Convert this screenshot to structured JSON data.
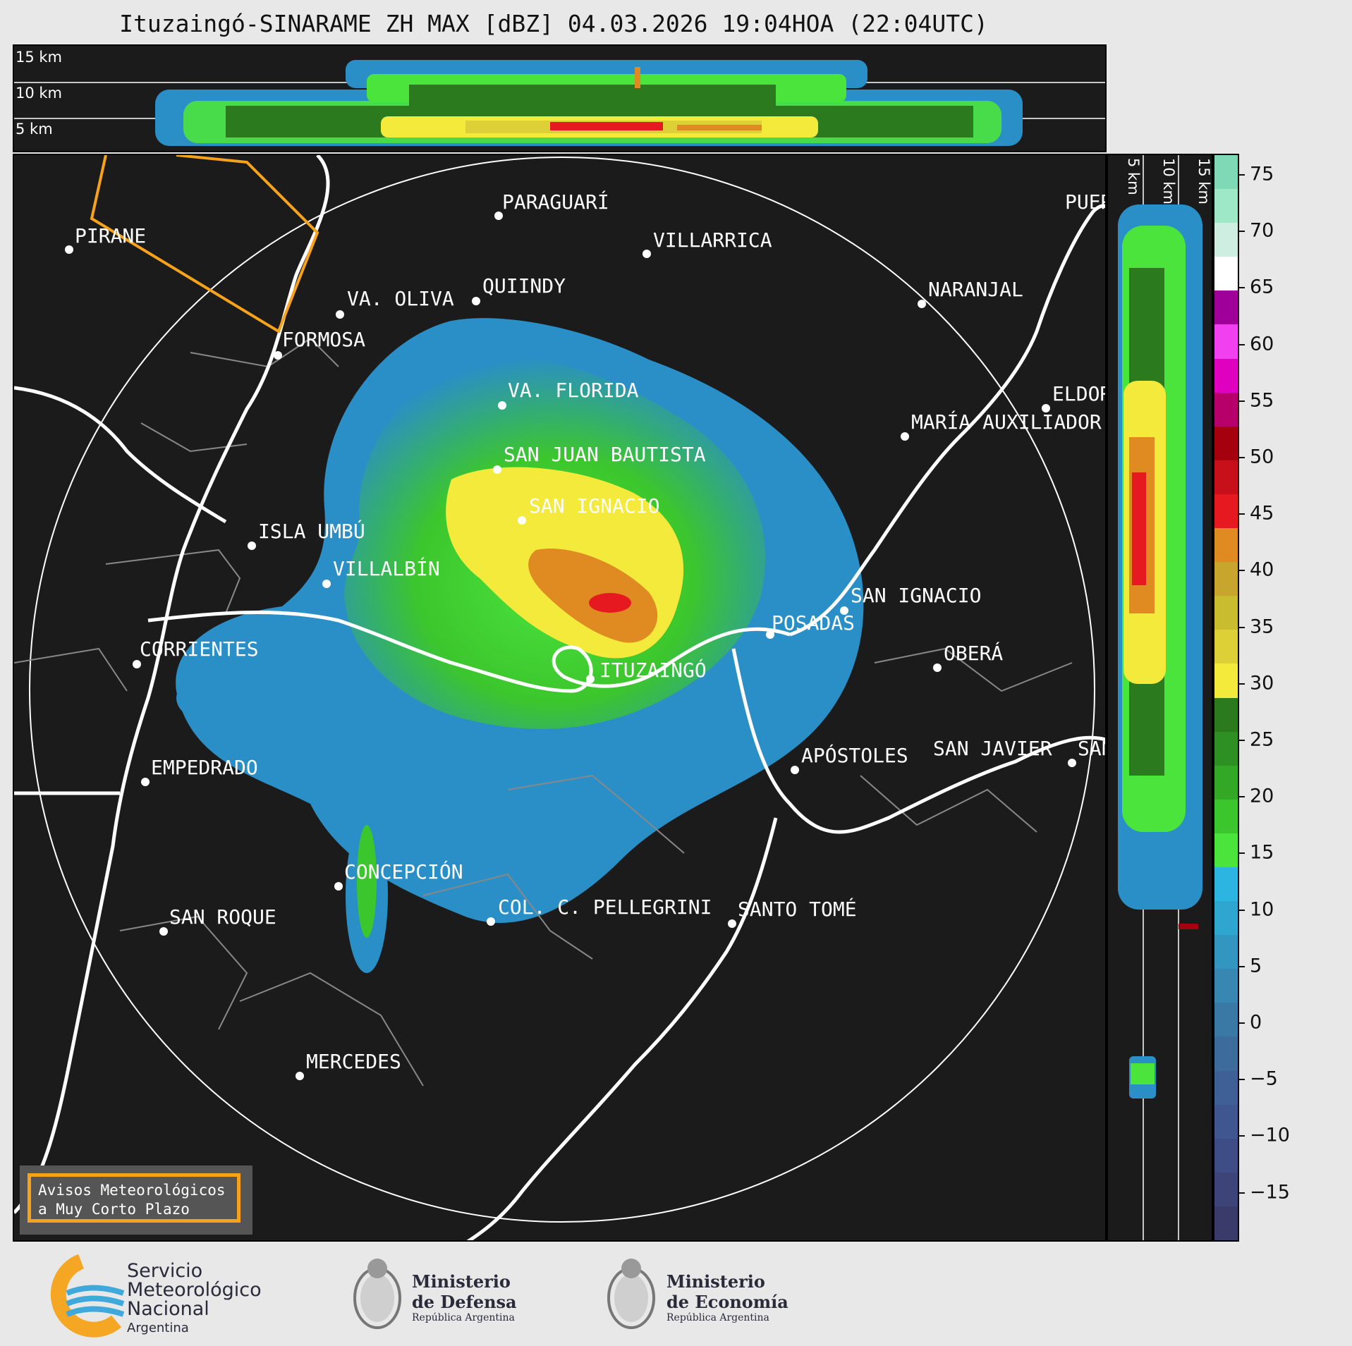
{
  "title": "Ituzaingó-SINARAME ZH MAX [dBZ] 04.03.2026 19:04HOA (22:04UTC)",
  "xsec_top_labels": [
    "15 km",
    "10 km",
    "5 km"
  ],
  "xsec_right_labels": [
    "5 km",
    "10 km",
    "15 km"
  ],
  "colorbar": {
    "unit": "dBZ",
    "ticks": [
      "75",
      "70",
      "65",
      "60",
      "55",
      "50",
      "45",
      "40",
      "35",
      "30",
      "25",
      "20",
      "15",
      "10",
      "5",
      "0",
      "−5",
      "−10",
      "−15"
    ],
    "colors": [
      "#3a3b6a",
      "#3c4478",
      "#3e4d86",
      "#3f5690",
      "#3e6096",
      "#3c6b9c",
      "#3a78a6",
      "#3886b2",
      "#3396c0",
      "#2fa6d0",
      "#2db5e2",
      "#4be43d",
      "#3cc62d",
      "#33a826",
      "#2e8f22",
      "#2b7a1e",
      "#f4ea3c",
      "#dcd036",
      "#c9bd2f",
      "#c8a52c",
      "#e08a22",
      "#e5191f",
      "#c8101a",
      "#a5000e",
      "#b8006a",
      "#e000c0",
      "#f040f0",
      "#a0009a",
      "#ffffff",
      "#cdeee0",
      "#9ee8c8",
      "#7fd8b6"
    ]
  },
  "cities": [
    {
      "name": "PARAGUARÍ"
    },
    {
      "name": "VILLARRICA"
    },
    {
      "name": "PIRANE"
    },
    {
      "name": "QUIINDY"
    },
    {
      "name": "VA. OLIVA"
    },
    {
      "name": "NARANJAL"
    },
    {
      "name": "FORMOSA"
    },
    {
      "name": "VA. FLORIDA"
    },
    {
      "name": "ELDOR"
    },
    {
      "name": "MARÍA AUXILIADOR"
    },
    {
      "name": "SAN JUAN BAUTISTA"
    },
    {
      "name": "SAN IGNACIO"
    },
    {
      "name": "ISLA UMBÚ"
    },
    {
      "name": "VILLALBÍN"
    },
    {
      "name": "SAN IGNACIO"
    },
    {
      "name": "POSADAS"
    },
    {
      "name": "CORRIENTES"
    },
    {
      "name": "ITUZAINGÓ"
    },
    {
      "name": "OBERÁ"
    },
    {
      "name": "EMPEDRADO"
    },
    {
      "name": "APÓSTOLES"
    },
    {
      "name": "SAN JAVIER"
    },
    {
      "name": "SAN"
    },
    {
      "name": "CONCEPCIÓN"
    },
    {
      "name": "SAN ROQUE"
    },
    {
      "name": "COL. C. PELLEGRINI"
    },
    {
      "name": "SANTO TOMÉ"
    },
    {
      "name": "MERCEDES"
    },
    {
      "name": "PUER"
    }
  ],
  "warning": {
    "line1": "Avisos Meteorológicos",
    "line2": "a Muy Corto Plazo"
  },
  "footer": {
    "smn": {
      "line1": "Servicio",
      "line2": "Meteorológico",
      "line3": "Nacional",
      "line4": "Argentina"
    },
    "defensa": {
      "line1": "Ministerio",
      "line2": "de Defensa",
      "line3": "República Argentina"
    },
    "economia": {
      "line1": "Ministerio",
      "line2": "de Economía",
      "line3": "República Argentina"
    }
  },
  "colors": {
    "warning_border": "#f7a21b",
    "warning_polygon": "#f7a21b",
    "map_background": "#1b1b1b"
  }
}
